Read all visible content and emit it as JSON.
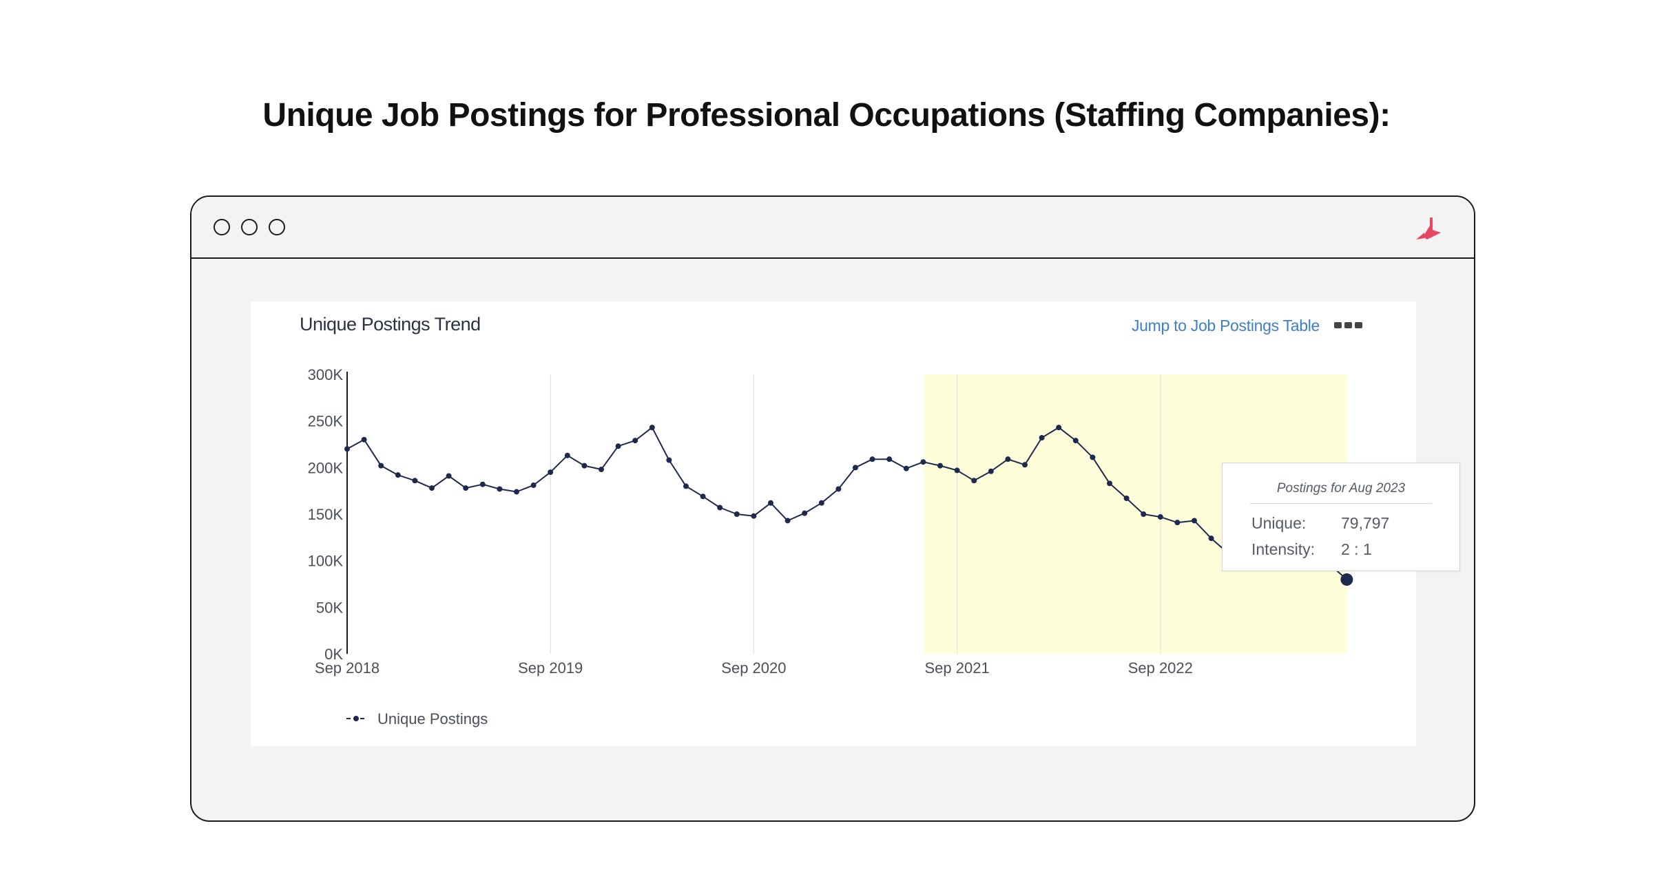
{
  "page": {
    "heading": "Unique Job Postings for Professional Occupations (Staffing Companies):"
  },
  "window": {
    "controls": [
      "circle",
      "circle",
      "circle"
    ],
    "logo_icon": "brand-logo-icon",
    "accent_color": "#e8475f"
  },
  "panel": {
    "title": "Unique Postings Trend",
    "jump_link": "Jump to Job Postings Table",
    "more_icon": "more-dots-icon"
  },
  "tooltip": {
    "title": "Postings for Aug 2023",
    "unique_label": "Unique:",
    "unique_value": "79,797",
    "intensity_label": "Intensity:",
    "intensity_value": "2 : 1"
  },
  "chart_data": {
    "type": "line",
    "title": "Unique Postings Trend",
    "xlabel": "",
    "ylabel": "",
    "ylim": [
      0,
      300000
    ],
    "y_ticks": [
      0,
      50000,
      100000,
      150000,
      200000,
      250000,
      300000
    ],
    "y_tick_labels": [
      "0K",
      "50K",
      "100K",
      "150K",
      "200K",
      "250K",
      "300K"
    ],
    "x_tick_labels": [
      "Sep 2018",
      "Sep 2019",
      "Sep 2020",
      "Sep 2021",
      "Sep 2022"
    ],
    "grid": "vertical",
    "legend": {
      "placement": "bottom-left"
    },
    "highlight_range": [
      "Aug 2021",
      "Aug 2023"
    ],
    "highlight_color": "#fffedb",
    "line_color": "#1d2a4d",
    "series": [
      {
        "name": "Unique Postings",
        "points": [
          {
            "x": "Sep 2018",
            "y": 220000
          },
          {
            "x": "Oct 2018",
            "y": 230000
          },
          {
            "x": "Nov 2018",
            "y": 202000
          },
          {
            "x": "Dec 2018",
            "y": 192000
          },
          {
            "x": "Jan 2019",
            "y": 186000
          },
          {
            "x": "Feb 2019",
            "y": 178000
          },
          {
            "x": "Mar 2019",
            "y": 191000
          },
          {
            "x": "Apr 2019",
            "y": 178000
          },
          {
            "x": "May 2019",
            "y": 182000
          },
          {
            "x": "Jun 2019",
            "y": 177000
          },
          {
            "x": "Jul 2019",
            "y": 174000
          },
          {
            "x": "Aug 2019",
            "y": 181000
          },
          {
            "x": "Sep 2019",
            "y": 195000
          },
          {
            "x": "Oct 2019",
            "y": 213000
          },
          {
            "x": "Nov 2019",
            "y": 202000
          },
          {
            "x": "Dec 2019",
            "y": 198000
          },
          {
            "x": "Jan 2020",
            "y": 223000
          },
          {
            "x": "Feb 2020",
            "y": 229000
          },
          {
            "x": "Mar 2020",
            "y": 243000
          },
          {
            "x": "Apr 2020",
            "y": 208000
          },
          {
            "x": "May 2020",
            "y": 180000
          },
          {
            "x": "Jun 2020",
            "y": 169000
          },
          {
            "x": "Jul 2020",
            "y": 157000
          },
          {
            "x": "Aug 2020",
            "y": 150000
          },
          {
            "x": "Sep 2020",
            "y": 148000
          },
          {
            "x": "Oct 2020",
            "y": 162000
          },
          {
            "x": "Nov 2020",
            "y": 143000
          },
          {
            "x": "Dec 2020",
            "y": 151000
          },
          {
            "x": "Jan 2021",
            "y": 162000
          },
          {
            "x": "Feb 2021",
            "y": 177000
          },
          {
            "x": "Mar 2021",
            "y": 200000
          },
          {
            "x": "Apr 2021",
            "y": 209000
          },
          {
            "x": "May 2021",
            "y": 209000
          },
          {
            "x": "Jun 2021",
            "y": 199000
          },
          {
            "x": "Jul 2021",
            "y": 206000
          },
          {
            "x": "Aug 2021",
            "y": 202000
          },
          {
            "x": "Sep 2021",
            "y": 197000
          },
          {
            "x": "Oct 2021",
            "y": 186000
          },
          {
            "x": "Nov 2021",
            "y": 196000
          },
          {
            "x": "Dec 2021",
            "y": 209000
          },
          {
            "x": "Jan 2022",
            "y": 203000
          },
          {
            "x": "Feb 2022",
            "y": 232000
          },
          {
            "x": "Mar 2022",
            "y": 243000
          },
          {
            "x": "Apr 2022",
            "y": 229000
          },
          {
            "x": "May 2022",
            "y": 211000
          },
          {
            "x": "Jun 2022",
            "y": 183000
          },
          {
            "x": "Jul 2022",
            "y": 167000
          },
          {
            "x": "Aug 2022",
            "y": 150000
          },
          {
            "x": "Sep 2022",
            "y": 147000
          },
          {
            "x": "Oct 2022",
            "y": 141000
          },
          {
            "x": "Nov 2022",
            "y": 143000
          },
          {
            "x": "Dec 2022",
            "y": 124000
          },
          {
            "x": "Jan 2023",
            "y": 108000
          },
          {
            "x": "Feb 2023",
            "y": 98000
          },
          {
            "x": "Mar 2023",
            "y": 100000
          },
          {
            "x": "Apr 2023",
            "y": 101000
          },
          {
            "x": "May 2023",
            "y": 99000
          },
          {
            "x": "Jun 2023",
            "y": 98000
          },
          {
            "x": "Jul 2023",
            "y": 96000
          },
          {
            "x": "Aug 2023",
            "y": 79797
          }
        ]
      }
    ]
  }
}
